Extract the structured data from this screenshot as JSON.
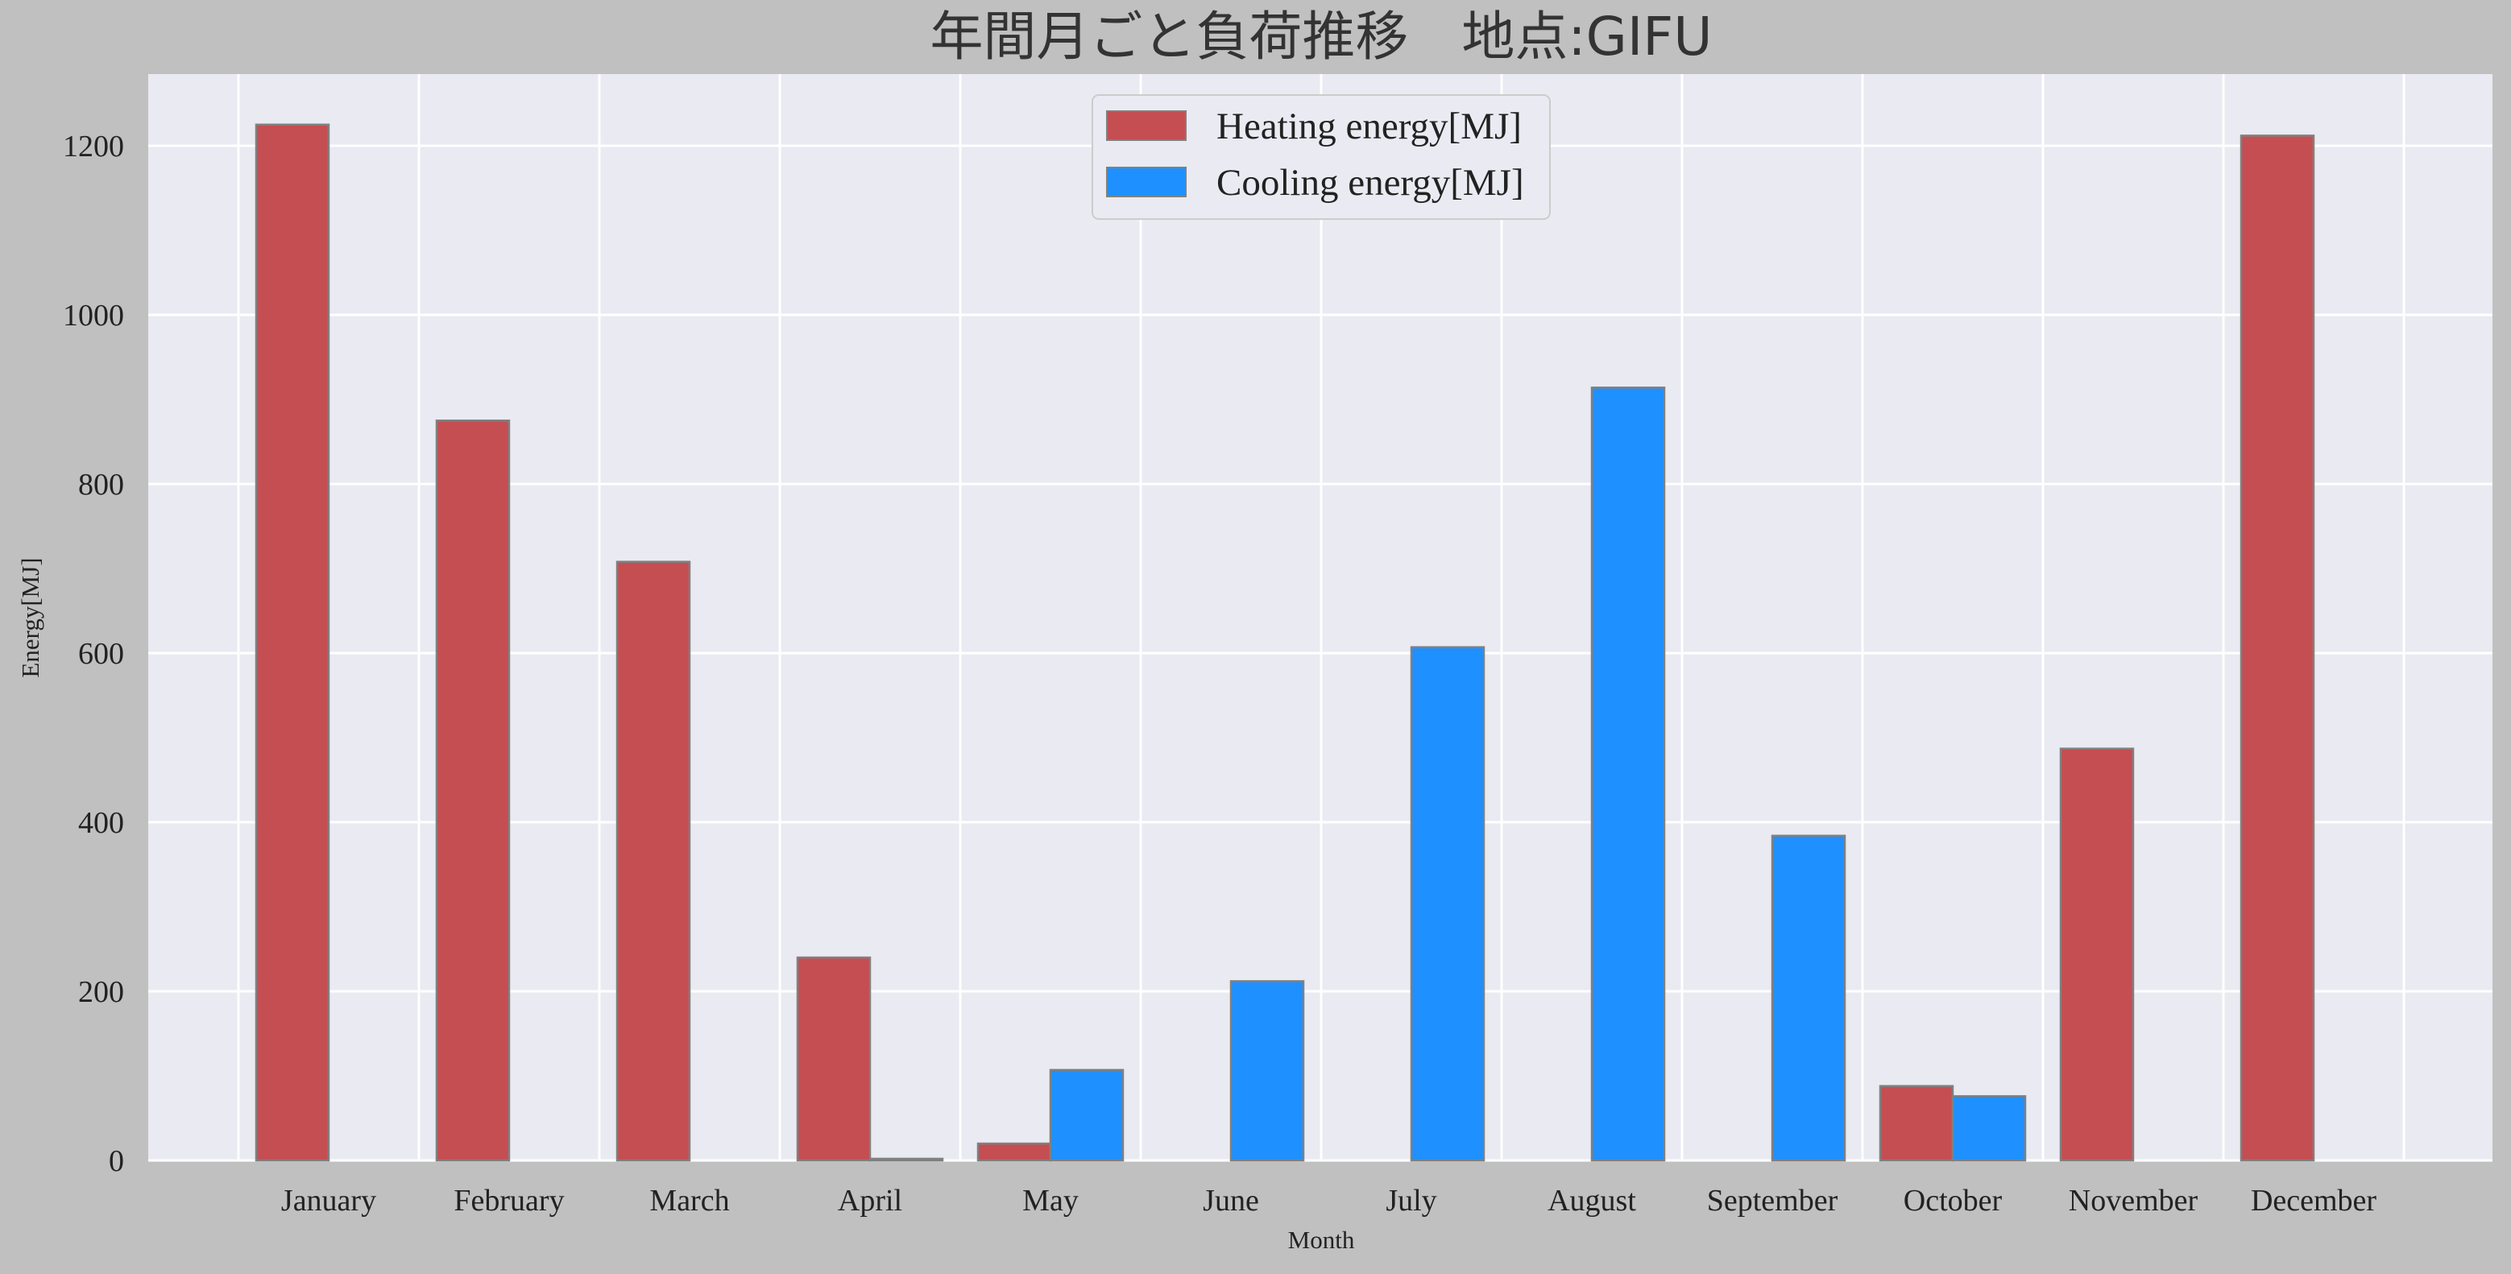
{
  "chart_data": {
    "type": "bar",
    "title": "年間月ごと負荷推移　地点:GIFU",
    "xlabel": "Month",
    "ylabel": "Energy[MJ]",
    "ylim": [
      0,
      1290
    ],
    "yticks": [
      0,
      200,
      400,
      600,
      800,
      1000,
      1200
    ],
    "grid": true,
    "legend_position": "top-center",
    "categories": [
      "January",
      "February",
      "March",
      "April",
      "May",
      "June",
      "July",
      "August",
      "September",
      "October",
      "November",
      "December"
    ],
    "series": [
      {
        "name": "Heating energy[MJ]",
        "color": "#c44e52",
        "values": [
          1225,
          875,
          708,
          240,
          20,
          0,
          0,
          0,
          0,
          88,
          487,
          1212
        ]
      },
      {
        "name": "Cooling energy[MJ]",
        "color": "#1e90ff",
        "values": [
          0,
          0,
          0,
          2,
          107,
          212,
          607,
          914,
          384,
          76,
          0,
          0
        ]
      }
    ]
  }
}
